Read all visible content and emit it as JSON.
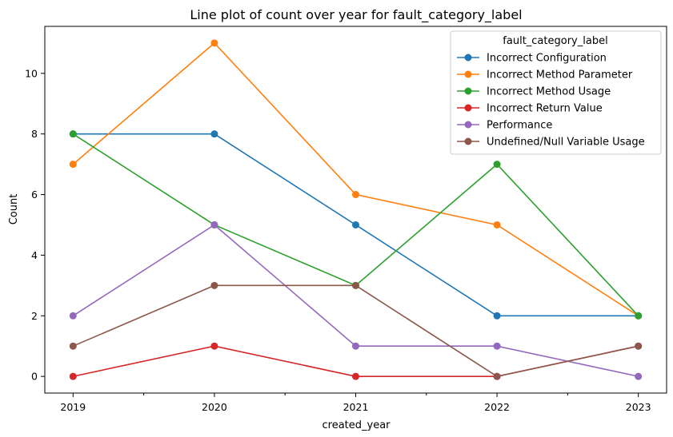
{
  "chart_data": {
    "type": "line",
    "title": "Line plot of count over year for fault_category_label",
    "xlabel": "created_year",
    "ylabel": "Count",
    "x": [
      2019,
      2020,
      2021,
      2022,
      2023
    ],
    "x_tick_labels": [
      "2019",
      "2020",
      "2021",
      "2022",
      "2023"
    ],
    "y_ticks": [
      0,
      2,
      4,
      6,
      8,
      10
    ],
    "y_tick_labels": [
      "0",
      "2",
      "4",
      "6",
      "8",
      "10"
    ],
    "ylim": [
      -0.55,
      11.55
    ],
    "xlim": [
      2018.8,
      2023.2
    ],
    "grid": false,
    "legend": {
      "title": "fault_category_label",
      "placement": "top-right"
    },
    "series": [
      {
        "name": "Incorrect Configuration",
        "color": "#1f77b4",
        "values": [
          8,
          8,
          5,
          2,
          2
        ]
      },
      {
        "name": "Incorrect Method Parameter",
        "color": "#ff7f0e",
        "values": [
          7,
          11,
          6,
          5,
          2
        ]
      },
      {
        "name": "Incorrect Method Usage",
        "color": "#2ca02c",
        "values": [
          8,
          5,
          3,
          7,
          2
        ]
      },
      {
        "name": "Incorrect Return Value",
        "color": "#d62728",
        "values": [
          0,
          1,
          0,
          0,
          1
        ]
      },
      {
        "name": "Performance",
        "color": "#9467bd",
        "values": [
          2,
          5,
          1,
          1,
          0
        ]
      },
      {
        "name": "Undefined/Null Variable Usage",
        "color": "#8c564b",
        "values": [
          1,
          3,
          3,
          0,
          1
        ]
      }
    ]
  }
}
